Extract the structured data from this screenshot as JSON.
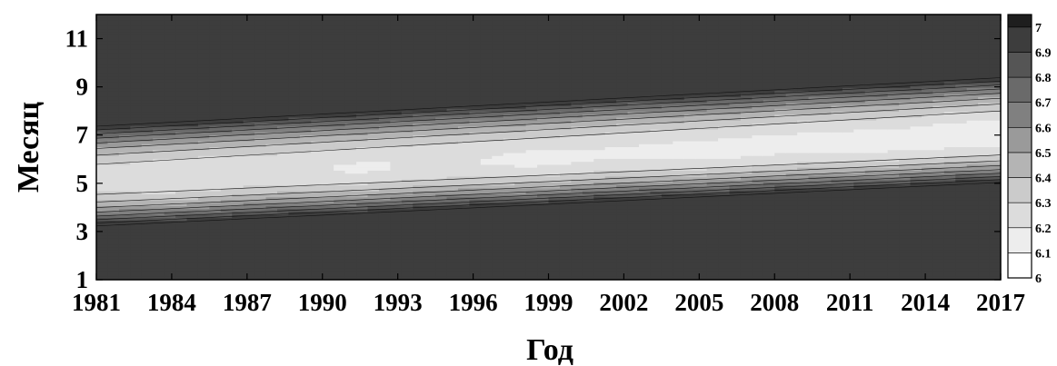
{
  "chart_data": {
    "type": "heatmap",
    "title": "",
    "xlabel": "Год",
    "ylabel": "Месяц",
    "xlim": [
      1981,
      2017
    ],
    "ylim": [
      1,
      12
    ],
    "x_ticks": [
      "1981",
      "1984",
      "1987",
      "1990",
      "1993",
      "1996",
      "1999",
      "2002",
      "2005",
      "2008",
      "2011",
      "2014",
      "2017"
    ],
    "y_ticks": [
      "1",
      "3",
      "5",
      "7",
      "9",
      "11"
    ],
    "colorbar": {
      "range": [
        6.0,
        7.05
      ],
      "ticks": [
        "6",
        "6.1",
        "6.2",
        "6.3",
        "6.4",
        "6.5",
        "6.6",
        "6.7",
        "6.8",
        "6.9",
        "7"
      ],
      "colors": [
        "#ffffff",
        "#ededed",
        "#dcdcdc",
        "#cbcbcb",
        "#b4b4b4",
        "#9a9a9a",
        "#808080",
        "#6a6a6a",
        "#555555",
        "#3d3d3d",
        "#1e1e1e"
      ]
    },
    "grid": false,
    "contour_levels": [
      6.0,
      6.1,
      6.2,
      6.3,
      6.4,
      6.5,
      6.6,
      6.7,
      6.8,
      6.9,
      7.0
    ],
    "description_of_field": {
      "minimum_month_start": 5.1,
      "minimum_month_end": 7.0,
      "minimum_value_start": 6.23,
      "minimum_value_end": 6.15,
      "maximum_value": 6.96
    }
  }
}
